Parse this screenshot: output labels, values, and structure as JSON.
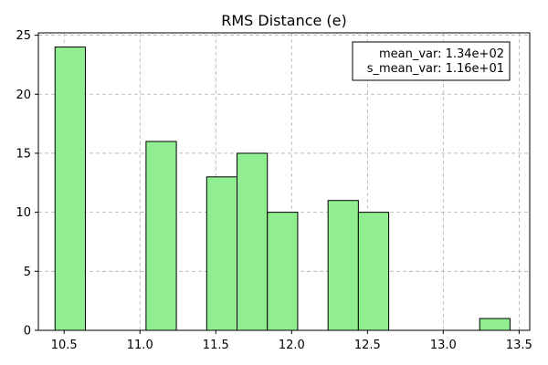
{
  "chart_data": {
    "type": "bar",
    "title": "RMS Distance (e)",
    "xlabel": "",
    "ylabel": "",
    "xlim": [
      10.33,
      13.57
    ],
    "ylim": [
      0,
      25.2
    ],
    "xticks": [
      10.5,
      11.0,
      11.5,
      12.0,
      12.5,
      13.0,
      13.5
    ],
    "xtick_labels": [
      "10.5",
      "11.0",
      "11.5",
      "12.0",
      "12.5",
      "13.0",
      "13.5"
    ],
    "yticks": [
      0,
      5,
      10,
      15,
      20,
      25
    ],
    "ytick_labels": [
      "0",
      "5",
      "10",
      "15",
      "20",
      "25"
    ],
    "grid": true,
    "bar_color": "#90ee90",
    "edge_color": "#000000",
    "bins": [
      {
        "x0": 10.44,
        "x1": 10.64,
        "count": 24
      },
      {
        "x0": 11.04,
        "x1": 11.24,
        "count": 16
      },
      {
        "x0": 11.44,
        "x1": 11.64,
        "count": 13
      },
      {
        "x0": 11.64,
        "x1": 11.84,
        "count": 15
      },
      {
        "x0": 11.84,
        "x1": 12.04,
        "count": 10
      },
      {
        "x0": 12.24,
        "x1": 12.44,
        "count": 11
      },
      {
        "x0": 12.44,
        "x1": 12.64,
        "count": 10
      },
      {
        "x0": 13.24,
        "x1": 13.44,
        "count": 1
      }
    ],
    "annotation": {
      "placement": "top-right",
      "lines": [
        "mean_var: 1.34e+02",
        "s_mean_var: 1.16e+01"
      ]
    }
  }
}
